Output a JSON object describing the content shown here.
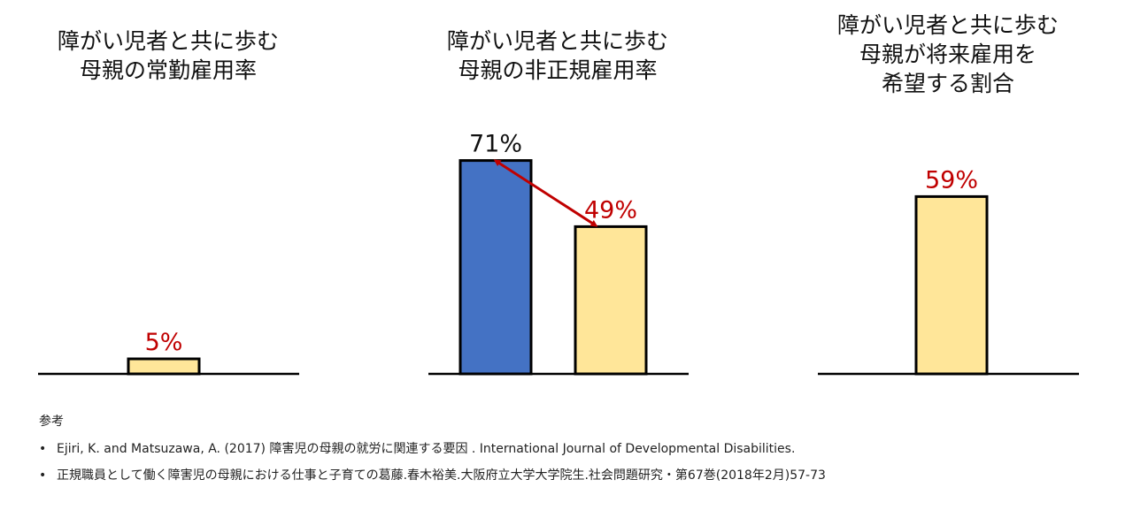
{
  "chart_data": [
    {
      "type": "bar",
      "title_lines": [
        "障がい児者と共に歩む",
        "母親の常勤雇用率"
      ],
      "categories": [
        ""
      ],
      "values": [
        5
      ],
      "value_labels": [
        "5%"
      ],
      "bar_colors": [
        "#FFE699"
      ],
      "label_colors": [
        "#C00000"
      ],
      "ylim": [
        0,
        100
      ]
    },
    {
      "type": "bar",
      "title_lines": [
        "障がい児者と共に歩む",
        "母親の非正規雇用率"
      ],
      "categories": [
        "",
        ""
      ],
      "values": [
        71,
        49
      ],
      "value_labels": [
        "71%",
        "49%"
      ],
      "bar_colors": [
        "#4472C4",
        "#FFE699"
      ],
      "label_colors": [
        "#111111",
        "#C00000"
      ],
      "arrow": {
        "from": 0,
        "to": 1,
        "color": "#C00000"
      },
      "ylim": [
        0,
        100
      ]
    },
    {
      "type": "bar",
      "title_lines": [
        "障がい児者と共に歩む",
        "母親が将来雇用を",
        "希望する割合"
      ],
      "categories": [
        ""
      ],
      "values": [
        59
      ],
      "value_labels": [
        "59%"
      ],
      "bar_colors": [
        "#FFE699"
      ],
      "label_colors": [
        "#C00000"
      ],
      "ylim": [
        0,
        100
      ]
    }
  ],
  "references": {
    "heading": "参考",
    "items": [
      "Ejiri, K. and Matsuzawa, A. (2017) 障害児の母親の就労に関連する要因 . International Journal of Developmental Disabilities.",
      "正規職員として働く障害児の母親における仕事と子育ての葛藤.春木裕美.大阪府立大学大学院生.社会問題研究・第67巻(2018年2月)57-73"
    ]
  },
  "colors": {
    "highlight": "#C00000",
    "bar_yellow": "#FFE699",
    "bar_blue": "#4472C4",
    "axis": "#000000"
  }
}
